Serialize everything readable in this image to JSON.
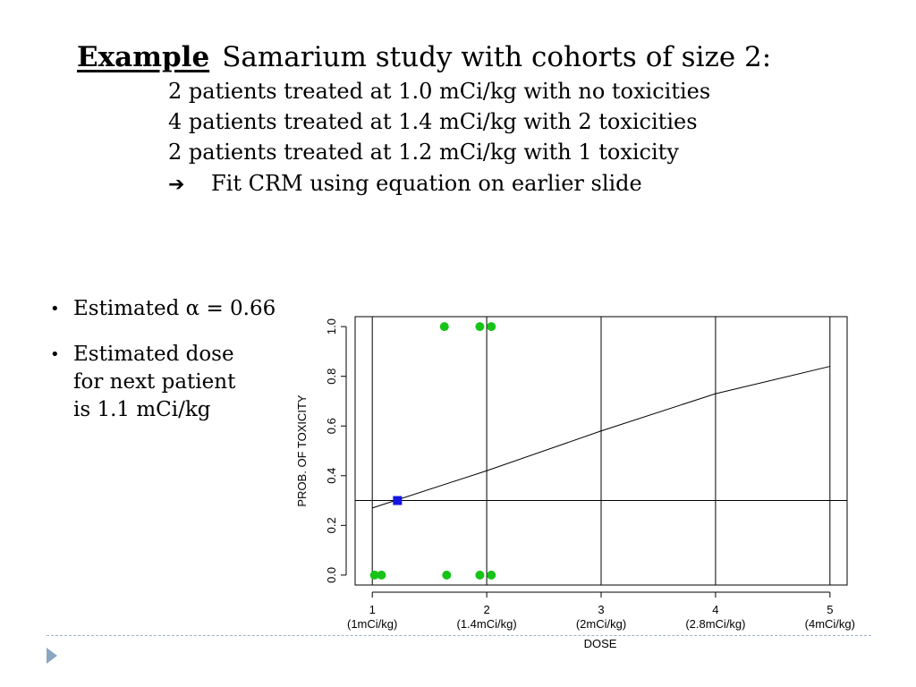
{
  "slide": {
    "title_lead": "Example",
    "title_rest": "Samarium study with cohorts of size 2:",
    "lines": [
      "2 patients treated at 1.0 mCi/kg with no toxicities",
      "4 patients treated at 1.4 mCi/kg with 2 toxicities",
      "2 patients treated at 1.2 mCi/kg with 1 toxicity"
    ],
    "arrow_symbol": "➔",
    "arrow_text": "Fit CRM using equation on earlier slide",
    "bullet_symbol": "•",
    "bullets": [
      "Estimated α = 0.66",
      "Estimated dose\nfor next patient\nis 1.1 mCi/kg"
    ]
  },
  "chart_data": {
    "type": "line",
    "xlabel": "DOSE",
    "ylabel": "PROB. OF TOXICITY",
    "xlim": [
      0.85,
      5.15
    ],
    "ylim": [
      -0.04,
      1.04
    ],
    "x_ticks": [
      1,
      2,
      3,
      4,
      5
    ],
    "x_tick_sublabels": [
      "(1mCi/kg)",
      "(1.4mCi/kg)",
      "(2mCi/kg)",
      "(2.8mCi/kg)",
      "(4mCi/kg)"
    ],
    "y_ticks": [
      "0.0",
      "0.2",
      "0.4",
      "0.6",
      "0.8",
      "1.0"
    ],
    "vertical_gridlines": [
      1,
      2,
      3,
      4,
      5
    ],
    "target_line_y": 0.3,
    "series": [
      {
        "x": [
          1,
          2,
          3,
          4,
          5
        ],
        "y": [
          0.27,
          0.42,
          0.58,
          0.73,
          0.84
        ]
      }
    ],
    "outcomes": [
      {
        "x": 1.02,
        "y": 0
      },
      {
        "x": 1.08,
        "y": 0
      },
      {
        "x": 1.63,
        "y": 1
      },
      {
        "x": 1.65,
        "y": 0
      },
      {
        "x": 1.94,
        "y": 1
      },
      {
        "x": 2.04,
        "y": 1
      },
      {
        "x": 1.94,
        "y": 0
      },
      {
        "x": 2.04,
        "y": 0
      }
    ],
    "estimate_point": {
      "x": 1.22,
      "y": 0.3
    },
    "colors": {
      "outcome": "#17c317",
      "estimate": "#1616e0",
      "line": "#000000"
    }
  }
}
